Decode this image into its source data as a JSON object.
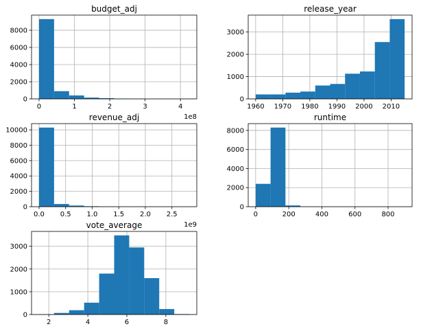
{
  "figure": {
    "background": "#ffffff",
    "bar_color": "#1f77b4",
    "grid_color": "#b0b0b0"
  },
  "chart_data": [
    {
      "type": "bar",
      "title": "budget_adj",
      "bin_edges": [
        0,
        0.425,
        0.85,
        1.275,
        1.7,
        2.125,
        2.55,
        2.975,
        3.4,
        3.825,
        4.25
      ],
      "values": [
        9300,
        900,
        400,
        150,
        80,
        40,
        10,
        5,
        2,
        3
      ],
      "xlim": [
        -0.2125,
        4.4625
      ],
      "ylim": [
        0,
        9765
      ],
      "xticks": [
        0,
        1,
        2,
        3,
        4
      ],
      "xtick_labels": [
        "0",
        "1",
        "2",
        "3",
        "4"
      ],
      "yticks": [
        0,
        2000,
        4000,
        6000,
        8000
      ],
      "ytick_labels": [
        "0",
        "2000",
        "4000",
        "6000",
        "8000"
      ],
      "offset_text": "1e8",
      "grid": true
    },
    {
      "type": "bar",
      "title": "release_year",
      "bin_edges": [
        1960,
        1965.5,
        1971,
        1976.5,
        1982,
        1987.5,
        1993,
        1998.5,
        2004,
        2009.5,
        2015
      ],
      "values": [
        200,
        200,
        280,
        330,
        600,
        670,
        1130,
        1230,
        2550,
        3580
      ],
      "xlim": [
        1957.25,
        2017.75
      ],
      "ylim": [
        0,
        3759
      ],
      "xticks": [
        1960,
        1970,
        1980,
        1990,
        2000,
        2010
      ],
      "xtick_labels": [
        "1960",
        "1970",
        "1980",
        "1990",
        "2000",
        "2010"
      ],
      "yticks": [
        0,
        1000,
        2000,
        3000
      ],
      "ytick_labels": [
        "0",
        "1000",
        "2000",
        "3000"
      ],
      "offset_text": "",
      "grid": true
    },
    {
      "type": "bar",
      "title": "revenue_adj",
      "bin_edges": [
        0,
        0.2827,
        0.5654,
        0.8481,
        1.1308,
        1.4135,
        1.6962,
        1.9789,
        2.2616,
        2.5443,
        2.827
      ],
      "values": [
        10300,
        350,
        150,
        60,
        20,
        10,
        5,
        3,
        2,
        2
      ],
      "xlim": [
        -0.14135,
        2.96835
      ],
      "ylim": [
        0,
        10815
      ],
      "xticks": [
        0,
        0.5,
        1.0,
        1.5,
        2.0,
        2.5
      ],
      "xtick_labels": [
        "0.0",
        "0.5",
        "1.0",
        "1.5",
        "2.0",
        "2.5"
      ],
      "yticks": [
        0,
        2000,
        4000,
        6000,
        8000,
        10000
      ],
      "ytick_labels": [
        "0",
        "2000",
        "4000",
        "6000",
        "8000",
        "10000"
      ],
      "offset_text": "1e9",
      "grid": true
    },
    {
      "type": "bar",
      "title": "runtime",
      "bin_edges": [
        0,
        90,
        180,
        270,
        360,
        450,
        540,
        630,
        720,
        810,
        900
      ],
      "values": [
        2400,
        8300,
        130,
        15,
        5,
        3,
        2,
        1,
        1,
        1
      ],
      "xlim": [
        -45,
        945
      ],
      "ylim": [
        0,
        8715
      ],
      "xticks": [
        0,
        200,
        400,
        600,
        800
      ],
      "xtick_labels": [
        "0",
        "200",
        "400",
        "600",
        "800"
      ],
      "yticks": [
        0,
        2000,
        4000,
        6000,
        8000
      ],
      "ytick_labels": [
        "0",
        "2000",
        "4000",
        "6000",
        "8000"
      ],
      "offset_text": "",
      "grid": true
    },
    {
      "type": "bar",
      "title": "vote_average",
      "bin_edges": [
        1.5,
        2.27,
        3.04,
        3.81,
        4.58,
        5.35,
        6.12,
        6.89,
        7.66,
        8.43,
        9.2
      ],
      "values": [
        10,
        70,
        190,
        520,
        1800,
        3480,
        2950,
        1600,
        240,
        20
      ],
      "xlim": [
        1.115,
        9.585
      ],
      "ylim": [
        0,
        3654
      ],
      "xticks": [
        2,
        4,
        6,
        8
      ],
      "xtick_labels": [
        "2",
        "4",
        "6",
        "8"
      ],
      "yticks": [
        0,
        1000,
        2000,
        3000
      ],
      "ytick_labels": [
        "0",
        "1000",
        "2000",
        "3000"
      ],
      "offset_text": "",
      "grid": true
    }
  ]
}
